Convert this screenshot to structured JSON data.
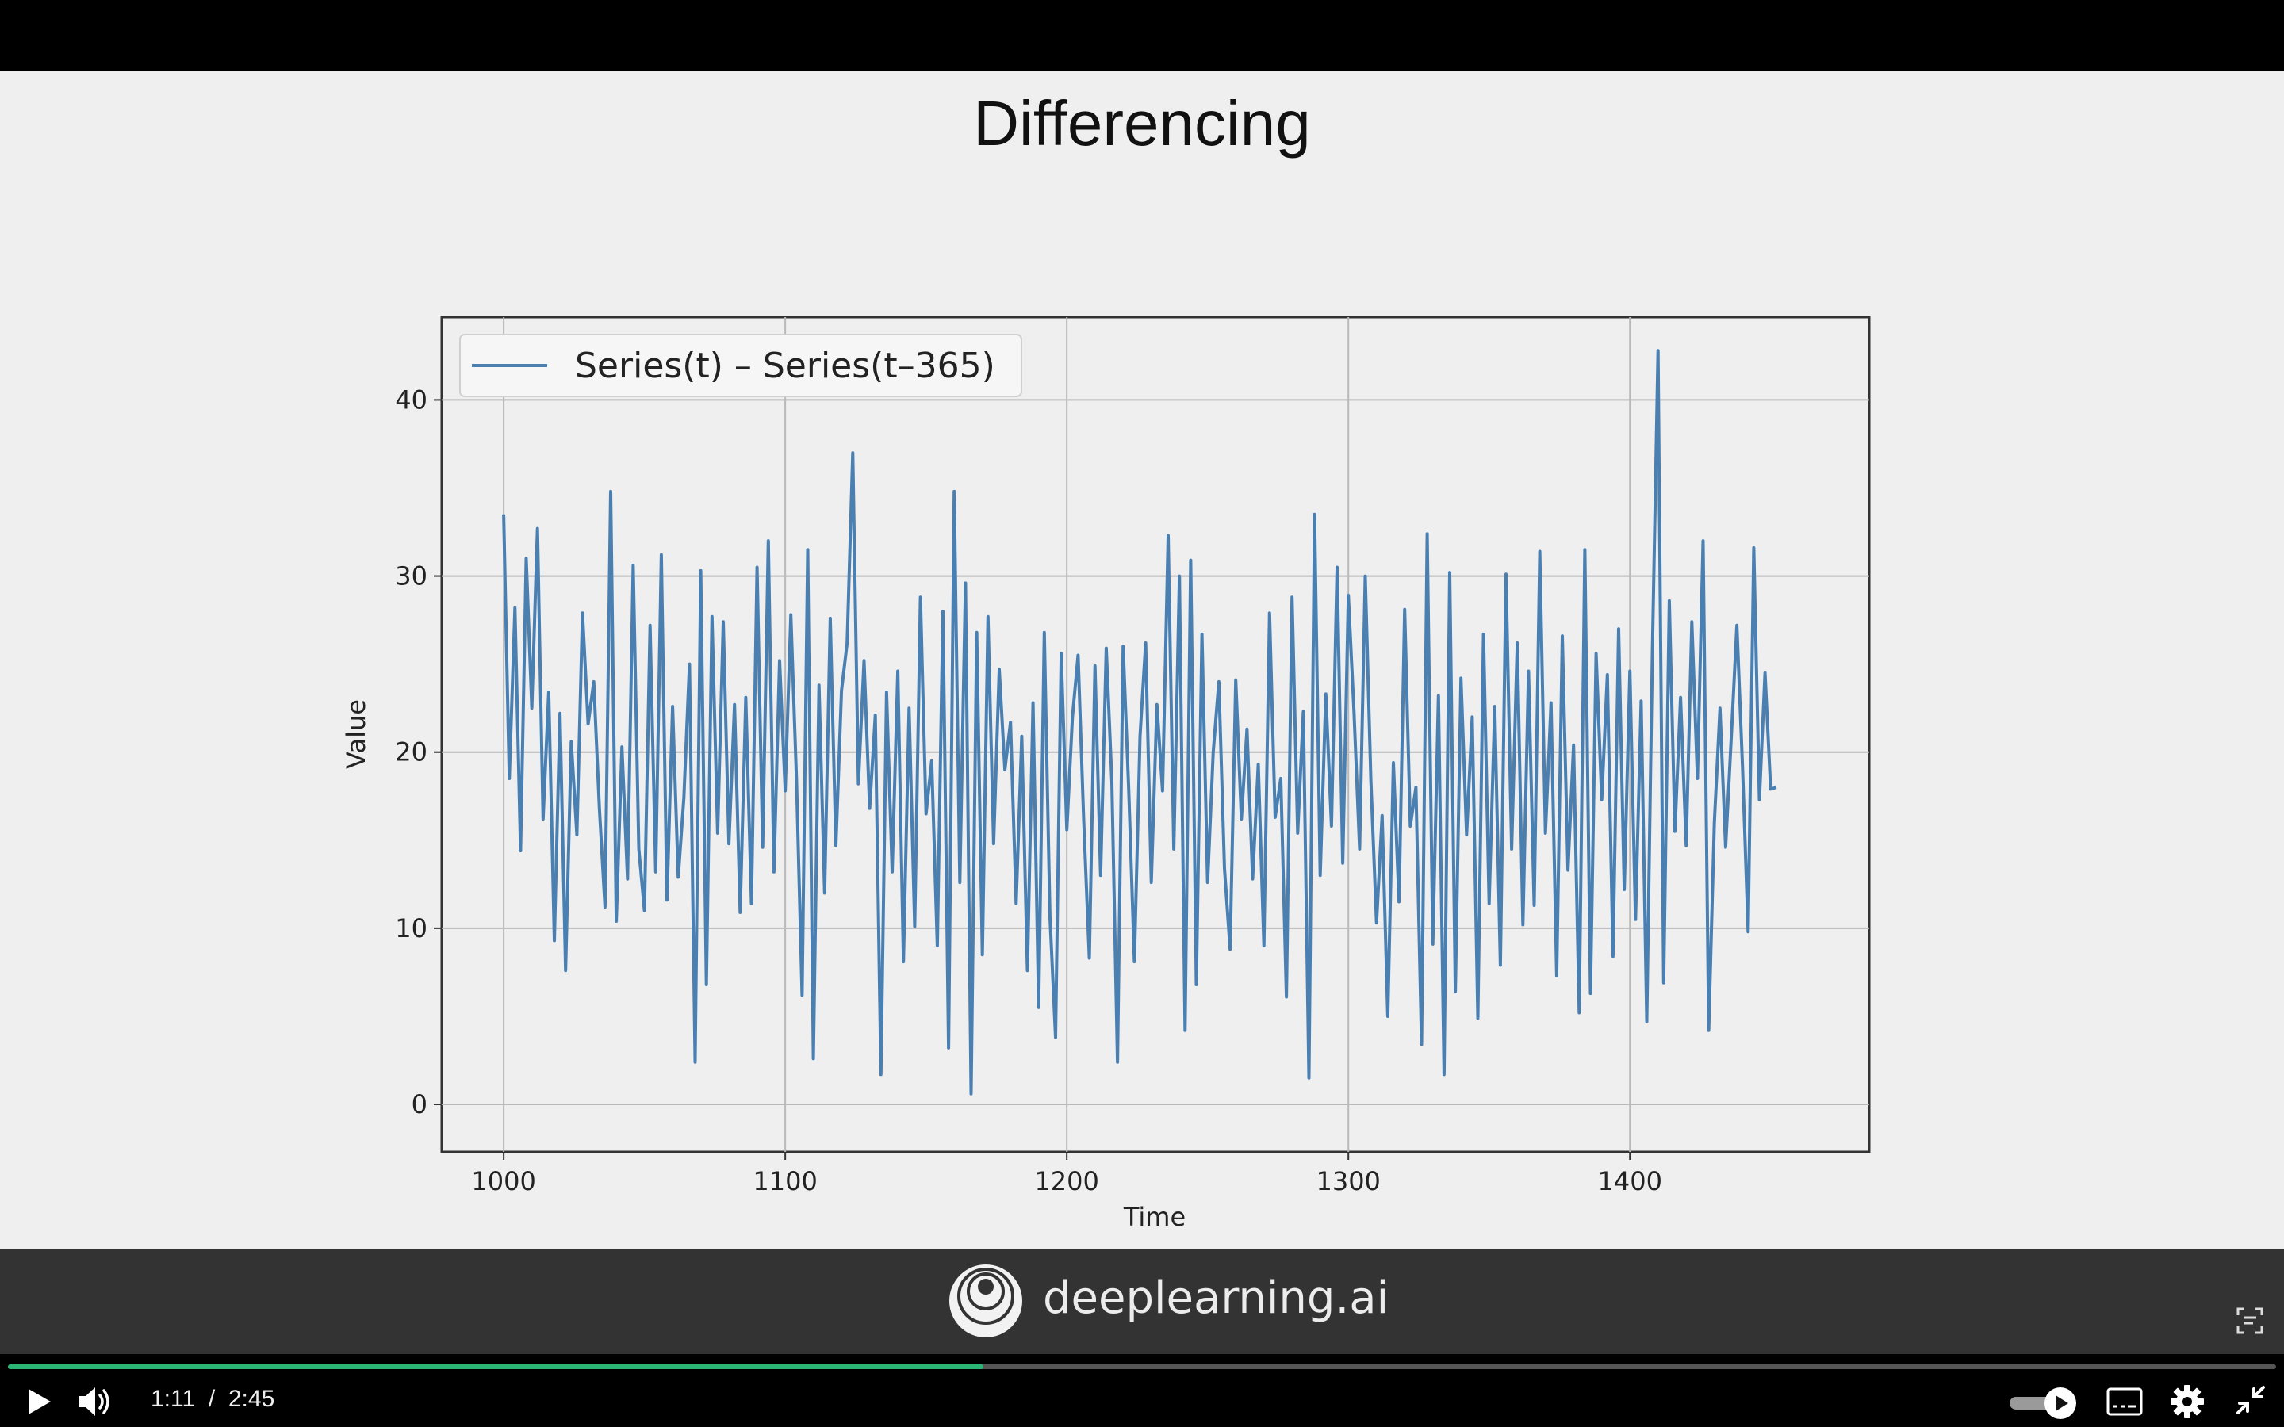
{
  "slide": {
    "title": "Differencing"
  },
  "chart_data": {
    "type": "line",
    "xlabel": "Time",
    "ylabel": "Value",
    "xlim": [
      978,
      1485
    ],
    "ylim": [
      -2.7,
      44.7
    ],
    "xticks": [
      1000,
      1100,
      1200,
      1300,
      1400
    ],
    "yticks": [
      0,
      10,
      20,
      30,
      40
    ],
    "grid": true,
    "legend_position": "top-left",
    "series": [
      {
        "name": "Series(t) – Series(t–365)",
        "color": "#4a7fb2",
        "x_start": 1000,
        "x_step": 2,
        "values": [
          33.5,
          18.5,
          28.2,
          14.4,
          31.0,
          22.5,
          32.7,
          16.2,
          23.4,
          9.3,
          22.2,
          7.6,
          20.6,
          15.3,
          27.9,
          21.6,
          24.0,
          16.8,
          11.2,
          34.8,
          10.4,
          20.3,
          12.8,
          30.6,
          14.5,
          11.0,
          27.2,
          13.2,
          31.2,
          11.6,
          22.6,
          12.9,
          17.4,
          25.0,
          2.4,
          30.3,
          6.8,
          27.7,
          15.4,
          27.4,
          14.8,
          22.7,
          10.9,
          23.1,
          11.4,
          30.5,
          14.6,
          32.0,
          13.2,
          25.2,
          17.8,
          27.8,
          18.5,
          6.2,
          31.5,
          2.6,
          23.8,
          12.0,
          27.6,
          14.7,
          23.5,
          26.2,
          37.0,
          18.2,
          25.2,
          16.8,
          22.1,
          1.7,
          23.4,
          13.2,
          24.6,
          8.1,
          22.5,
          10.1,
          28.8,
          16.5,
          19.5,
          9.0,
          28.0,
          3.2,
          34.8,
          12.6,
          29.6,
          0.6,
          26.8,
          8.5,
          27.7,
          14.8,
          24.7,
          19.0,
          21.7,
          11.4,
          20.9,
          7.6,
          22.8,
          5.5,
          26.8,
          10.7,
          3.8,
          25.6,
          15.6,
          22.0,
          25.5,
          16.1,
          8.3,
          24.9,
          13.0,
          25.9,
          18.3,
          2.4,
          26.0,
          17.8,
          8.1,
          20.9,
          26.2,
          12.6,
          22.7,
          17.8,
          32.3,
          14.5,
          30.0,
          4.2,
          30.9,
          6.8,
          26.7,
          12.6,
          20.0,
          24.0,
          13.4,
          8.8,
          24.1,
          16.2,
          21.3,
          12.8,
          19.3,
          9.0,
          27.9,
          16.3,
          18.5,
          6.1,
          28.8,
          15.4,
          22.3,
          1.5,
          33.5,
          13.0,
          23.3,
          15.8,
          30.5,
          13.7,
          28.9,
          22.3,
          14.5,
          30.0,
          18.4,
          10.3,
          16.4,
          5.0,
          19.4,
          11.5,
          28.1,
          15.8,
          18.0,
          3.4,
          32.4,
          9.1,
          23.2,
          1.7,
          30.2,
          6.4,
          24.2,
          15.3,
          22.0,
          4.9,
          26.7,
          11.4,
          22.6,
          7.9,
          30.1,
          14.5,
          26.2,
          10.2,
          24.6,
          11.3,
          31.4,
          15.4,
          22.8,
          7.3,
          26.6,
          13.3,
          20.4,
          5.2,
          31.5,
          6.3,
          25.6,
          17.3,
          24.4,
          8.4,
          27.0,
          12.2,
          24.6,
          10.5,
          22.9,
          4.7,
          25.8,
          42.8,
          6.9,
          28.6,
          15.5,
          23.1,
          14.7,
          27.4,
          18.5,
          32.0,
          4.2,
          16.0,
          22.5,
          14.6,
          20.8,
          27.2,
          19.2,
          9.8,
          31.6,
          17.3,
          24.5,
          17.9,
          18.0
        ]
      }
    ]
  },
  "footer": {
    "brand": "deeplearning.ai"
  },
  "player": {
    "current_time": "1:11",
    "duration": "2:45",
    "time_separator": "/",
    "progress_fraction": 0.43,
    "accent_color": "#2bb673"
  }
}
